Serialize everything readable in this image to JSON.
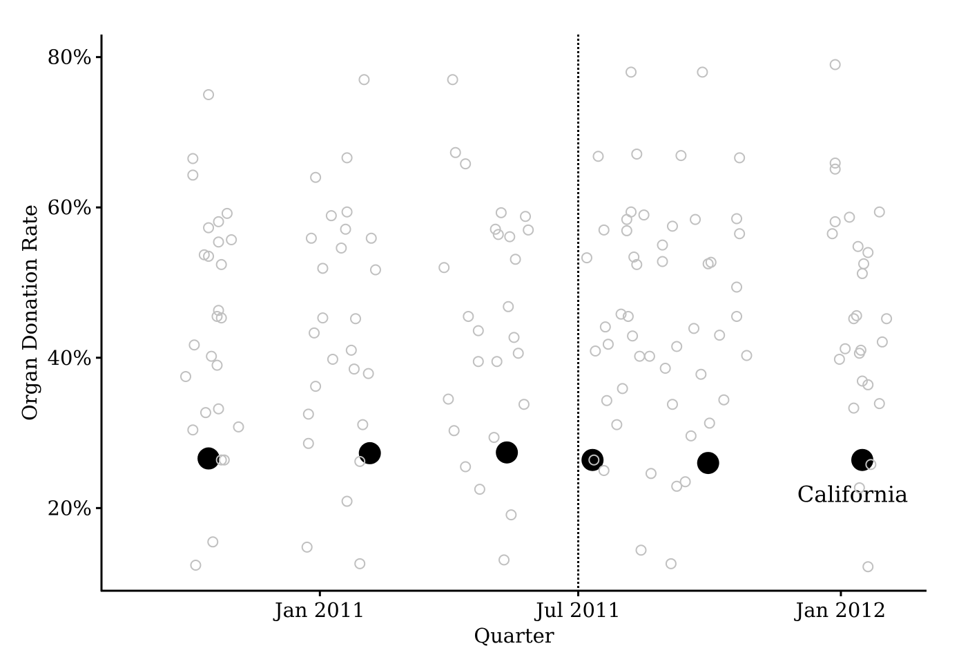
{
  "chart_data": {
    "type": "scatter",
    "title": "",
    "xlabel": "Quarter",
    "ylabel": "Organ Donation Rate",
    "x_ticks": [
      "Jan 2011",
      "Jul 2011",
      "Jan 2012"
    ],
    "x_tick_dates": [
      "2011-01-01",
      "2011-07-01",
      "2012-01-01"
    ],
    "y_ticks": [
      "20%",
      "40%",
      "60%",
      "80%"
    ],
    "y_tick_values": [
      0.2,
      0.4,
      0.6,
      0.8
    ],
    "xlim": [
      "2010-08-01",
      "2012-03-01"
    ],
    "ylim": [
      0.09,
      0.83
    ],
    "grid": false,
    "legend": "none",
    "reference_line": {
      "x": "2011-07-01",
      "style": "dotted"
    },
    "annotation": "California",
    "colors": {
      "other_states": "#c0c0c0",
      "california": "#000000",
      "reference_line": "#000000"
    },
    "series": [
      {
        "name": "California",
        "points": [
          {
            "x": "2010-10-15",
            "y": 0.266
          },
          {
            "x": "2011-02-05",
            "y": 0.273
          },
          {
            "x": "2011-05-12",
            "y": 0.274
          },
          {
            "x": "2011-07-11",
            "y": 0.264
          },
          {
            "x": "2011-09-30",
            "y": 0.26
          },
          {
            "x": "2012-01-16",
            "y": 0.264
          }
        ]
      },
      {
        "name": "",
        "points": [
          {
            "x": "2010-10-15",
            "y": 0.75
          },
          {
            "x": "2010-10-04",
            "y": 0.665
          },
          {
            "x": "2010-10-04",
            "y": 0.643
          },
          {
            "x": "2010-10-15",
            "y": 0.573
          },
          {
            "x": "2010-10-28",
            "y": 0.592
          },
          {
            "x": "2010-10-22",
            "y": 0.581
          },
          {
            "x": "2010-10-12",
            "y": 0.537
          },
          {
            "x": "2010-10-15",
            "y": 0.535
          },
          {
            "x": "2010-10-24",
            "y": 0.524
          },
          {
            "x": "2010-10-31",
            "y": 0.557
          },
          {
            "x": "2010-10-22",
            "y": 0.554
          },
          {
            "x": "2010-10-22",
            "y": 0.463
          },
          {
            "x": "2010-10-21",
            "y": 0.455
          },
          {
            "x": "2010-10-24",
            "y": 0.453
          },
          {
            "x": "2010-10-05",
            "y": 0.417
          },
          {
            "x": "2010-10-17",
            "y": 0.402
          },
          {
            "x": "2010-10-21",
            "y": 0.39
          },
          {
            "x": "2010-09-29",
            "y": 0.375
          },
          {
            "x": "2010-10-13",
            "y": 0.327
          },
          {
            "x": "2010-10-22",
            "y": 0.332
          },
          {
            "x": "2010-11-05",
            "y": 0.308
          },
          {
            "x": "2010-10-04",
            "y": 0.304
          },
          {
            "x": "2010-10-24",
            "y": 0.264
          },
          {
            "x": "2010-10-26",
            "y": 0.264
          },
          {
            "x": "2010-10-18",
            "y": 0.155
          },
          {
            "x": "2010-10-06",
            "y": 0.124
          },
          {
            "x": "2011-02-01",
            "y": 0.77
          },
          {
            "x": "2011-01-20",
            "y": 0.666
          },
          {
            "x": "2010-12-29",
            "y": 0.64
          },
          {
            "x": "2011-01-09",
            "y": 0.589
          },
          {
            "x": "2011-01-20",
            "y": 0.594
          },
          {
            "x": "2011-01-19",
            "y": 0.571
          },
          {
            "x": "2011-01-16",
            "y": 0.546
          },
          {
            "x": "2011-02-06",
            "y": 0.559
          },
          {
            "x": "2010-12-26",
            "y": 0.559
          },
          {
            "x": "2011-01-03",
            "y": 0.519
          },
          {
            "x": "2011-02-09",
            "y": 0.517
          },
          {
            "x": "2011-01-03",
            "y": 0.453
          },
          {
            "x": "2011-01-26",
            "y": 0.452
          },
          {
            "x": "2010-12-28",
            "y": 0.433
          },
          {
            "x": "2011-01-23",
            "y": 0.41
          },
          {
            "x": "2011-01-10",
            "y": 0.398
          },
          {
            "x": "2011-01-25",
            "y": 0.385
          },
          {
            "x": "2011-02-04",
            "y": 0.379
          },
          {
            "x": "2010-12-29",
            "y": 0.362
          },
          {
            "x": "2010-12-24",
            "y": 0.325
          },
          {
            "x": "2011-01-31",
            "y": 0.311
          },
          {
            "x": "2010-12-24",
            "y": 0.286
          },
          {
            "x": "2011-01-29",
            "y": 0.262
          },
          {
            "x": "2011-01-20",
            "y": 0.209
          },
          {
            "x": "2010-12-23",
            "y": 0.148
          },
          {
            "x": "2011-01-29",
            "y": 0.126
          },
          {
            "x": "2011-04-04",
            "y": 0.77
          },
          {
            "x": "2011-04-06",
            "y": 0.673
          },
          {
            "x": "2011-04-13",
            "y": 0.658
          },
          {
            "x": "2011-05-08",
            "y": 0.593
          },
          {
            "x": "2011-05-25",
            "y": 0.588
          },
          {
            "x": "2011-05-04",
            "y": 0.571
          },
          {
            "x": "2011-05-06",
            "y": 0.564
          },
          {
            "x": "2011-05-14",
            "y": 0.561
          },
          {
            "x": "2011-05-27",
            "y": 0.57
          },
          {
            "x": "2011-05-18",
            "y": 0.531
          },
          {
            "x": "2011-03-29",
            "y": 0.52
          },
          {
            "x": "2011-05-13",
            "y": 0.468
          },
          {
            "x": "2011-04-15",
            "y": 0.455
          },
          {
            "x": "2011-04-22",
            "y": 0.436
          },
          {
            "x": "2011-05-17",
            "y": 0.427
          },
          {
            "x": "2011-05-20",
            "y": 0.406
          },
          {
            "x": "2011-04-22",
            "y": 0.395
          },
          {
            "x": "2011-05-05",
            "y": 0.395
          },
          {
            "x": "2011-05-24",
            "y": 0.338
          },
          {
            "x": "2011-04-01",
            "y": 0.345
          },
          {
            "x": "2011-04-05",
            "y": 0.303
          },
          {
            "x": "2011-05-03",
            "y": 0.294
          },
          {
            "x": "2011-04-13",
            "y": 0.255
          },
          {
            "x": "2011-04-23",
            "y": 0.225
          },
          {
            "x": "2011-05-15",
            "y": 0.191
          },
          {
            "x": "2011-05-10",
            "y": 0.131
          },
          {
            "x": "2011-07-12",
            "y": 0.264
          },
          {
            "x": "2011-07-15",
            "y": 0.668
          },
          {
            "x": "2011-07-07",
            "y": 0.533
          },
          {
            "x": "2011-07-19",
            "y": 0.57
          },
          {
            "x": "2011-07-20",
            "y": 0.441
          },
          {
            "x": "2011-07-13",
            "y": 0.409
          },
          {
            "x": "2011-07-22",
            "y": 0.418
          },
          {
            "x": "2011-07-21",
            "y": 0.343
          },
          {
            "x": "2011-07-28",
            "y": 0.311
          },
          {
            "x": "2011-07-19",
            "y": 0.25
          },
          {
            "x": "2011-08-07",
            "y": 0.78
          },
          {
            "x": "2011-08-11",
            "y": 0.671
          },
          {
            "x": "2011-08-07",
            "y": 0.594
          },
          {
            "x": "2011-08-16",
            "y": 0.59
          },
          {
            "x": "2011-08-04",
            "y": 0.569
          },
          {
            "x": "2011-08-04",
            "y": 0.584
          },
          {
            "x": "2011-08-09",
            "y": 0.534
          },
          {
            "x": "2011-08-11",
            "y": 0.524
          },
          {
            "x": "2011-07-31",
            "y": 0.458
          },
          {
            "x": "2011-08-05",
            "y": 0.455
          },
          {
            "x": "2011-08-08",
            "y": 0.429
          },
          {
            "x": "2011-08-13",
            "y": 0.402
          },
          {
            "x": "2011-08-20",
            "y": 0.402
          },
          {
            "x": "2011-08-01",
            "y": 0.359
          },
          {
            "x": "2011-08-21",
            "y": 0.246
          },
          {
            "x": "2011-08-14",
            "y": 0.144
          },
          {
            "x": "2011-09-11",
            "y": 0.669
          },
          {
            "x": "2011-09-26",
            "y": 0.78
          },
          {
            "x": "2011-09-05",
            "y": 0.575
          },
          {
            "x": "2011-09-21",
            "y": 0.584
          },
          {
            "x": "2011-08-29",
            "y": 0.55
          },
          {
            "x": "2011-08-29",
            "y": 0.528
          },
          {
            "x": "2011-10-02",
            "y": 0.527
          },
          {
            "x": "2011-09-30",
            "y": 0.525
          },
          {
            "x": "2011-09-20",
            "y": 0.439
          },
          {
            "x": "2011-09-08",
            "y": 0.415
          },
          {
            "x": "2011-10-08",
            "y": 0.43
          },
          {
            "x": "2011-08-31",
            "y": 0.386
          },
          {
            "x": "2011-09-25",
            "y": 0.378
          },
          {
            "x": "2011-10-11",
            "y": 0.344
          },
          {
            "x": "2011-09-05",
            "y": 0.338
          },
          {
            "x": "2011-10-01",
            "y": 0.313
          },
          {
            "x": "2011-09-18",
            "y": 0.296
          },
          {
            "x": "2011-09-14",
            "y": 0.235
          },
          {
            "x": "2011-09-08",
            "y": 0.229
          },
          {
            "x": "2011-09-04",
            "y": 0.126
          },
          {
            "x": "2011-10-22",
            "y": 0.666
          },
          {
            "x": "2011-10-20",
            "y": 0.585
          },
          {
            "x": "2011-10-22",
            "y": 0.565
          },
          {
            "x": "2011-10-20",
            "y": 0.494
          },
          {
            "x": "2011-10-20",
            "y": 0.455
          },
          {
            "x": "2011-10-27",
            "y": 0.403
          },
          {
            "x": "2011-12-28",
            "y": 0.79
          },
          {
            "x": "2011-12-28",
            "y": 0.659
          },
          {
            "x": "2011-12-28",
            "y": 0.651
          },
          {
            "x": "2011-12-28",
            "y": 0.581
          },
          {
            "x": "2012-01-07",
            "y": 0.587
          },
          {
            "x": "2011-12-26",
            "y": 0.565
          },
          {
            "x": "2012-01-28",
            "y": 0.594
          },
          {
            "x": "2012-01-13",
            "y": 0.548
          },
          {
            "x": "2012-01-20",
            "y": 0.54
          },
          {
            "x": "2012-01-17",
            "y": 0.525
          },
          {
            "x": "2012-01-16",
            "y": 0.512
          },
          {
            "x": "2012-01-12",
            "y": 0.456
          },
          {
            "x": "2012-01-10",
            "y": 0.452
          },
          {
            "x": "2012-02-02",
            "y": 0.452
          },
          {
            "x": "2012-01-30",
            "y": 0.421
          },
          {
            "x": "2012-01-04",
            "y": 0.412
          },
          {
            "x": "2012-01-15",
            "y": 0.41
          },
          {
            "x": "2012-01-14",
            "y": 0.406
          },
          {
            "x": "2011-12-31",
            "y": 0.398
          },
          {
            "x": "2012-01-16",
            "y": 0.369
          },
          {
            "x": "2012-01-20",
            "y": 0.364
          },
          {
            "x": "2012-01-28",
            "y": 0.339
          },
          {
            "x": "2012-01-10",
            "y": 0.333
          },
          {
            "x": "2012-01-22",
            "y": 0.258
          },
          {
            "x": "2012-01-14",
            "y": 0.227
          },
          {
            "x": "2012-01-20",
            "y": 0.122
          }
        ]
      }
    ]
  }
}
